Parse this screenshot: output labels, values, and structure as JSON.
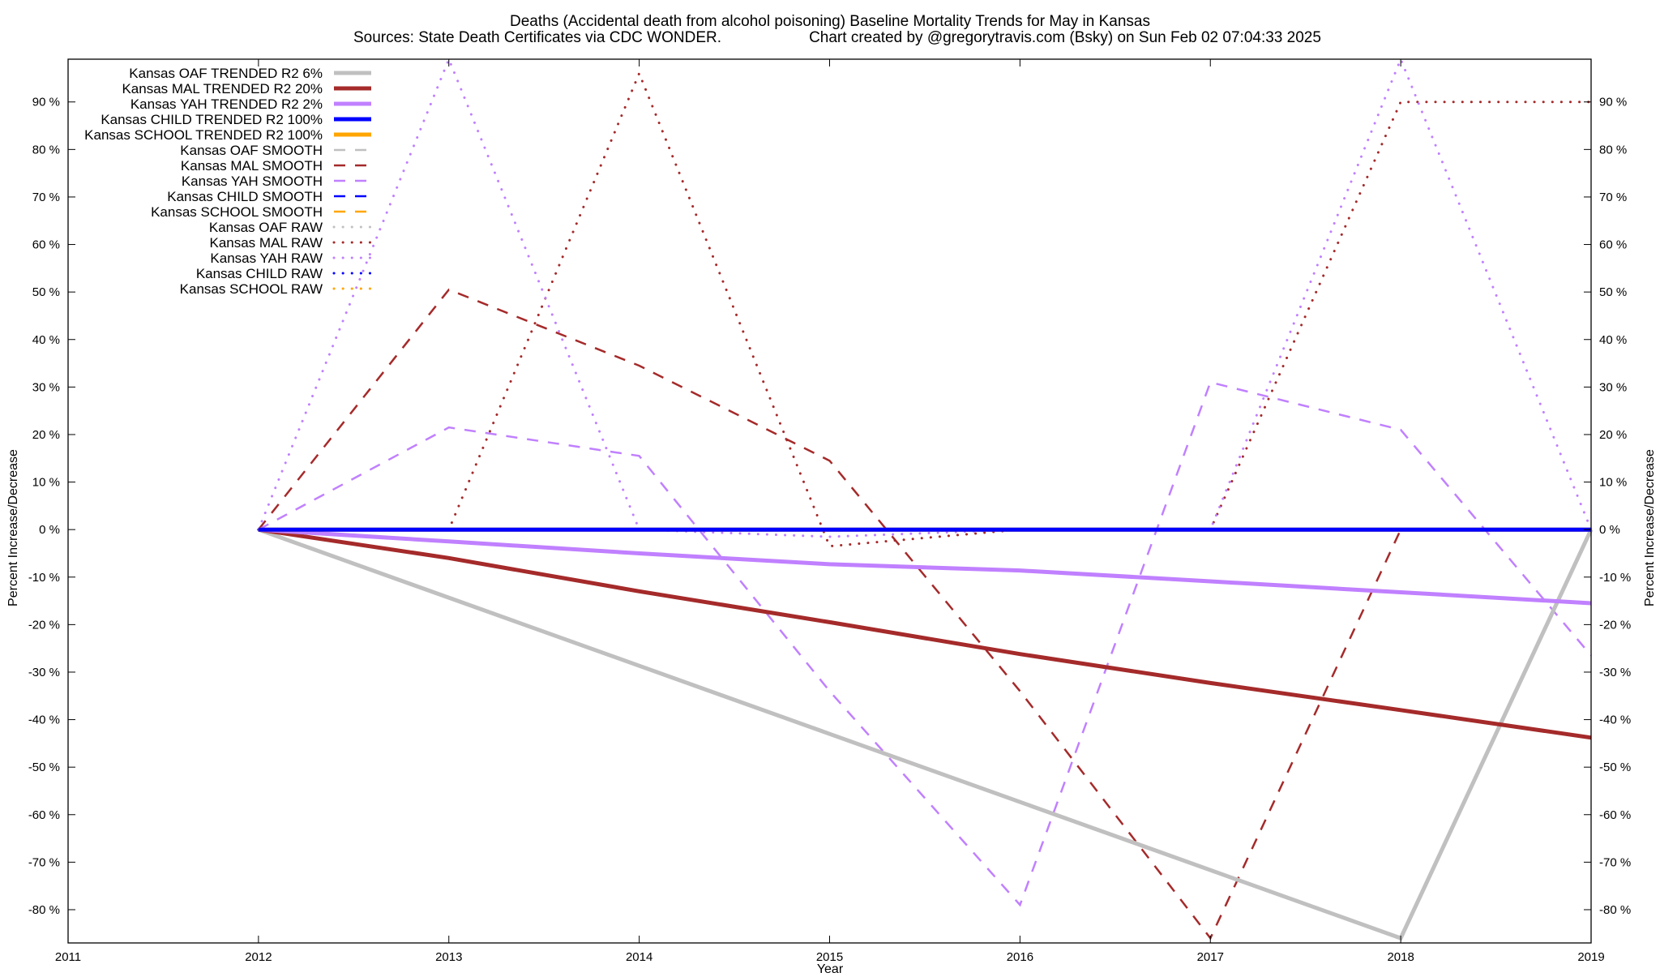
{
  "chart_data": {
    "type": "line",
    "title": "Deaths (Accidental death from alcohol poisoning)  Baseline Mortality Trends for May in Kansas",
    "subtitle_left": "Sources: State Death Certificates via CDC WONDER.",
    "subtitle_right": "Chart created by @gregorytravis.com (Bsky) on Sun Feb 02 07:04:33 2025",
    "xlabel": "Year",
    "ylabel": "Percent Increase/Decrease",
    "y2label": "Percent Increase/Decrease",
    "xlim": [
      2011,
      2019
    ],
    "ylim": [
      -87,
      99
    ],
    "x_ticks": [
      2011,
      2012,
      2013,
      2014,
      2015,
      2016,
      2017,
      2018,
      2019
    ],
    "y_ticks": [
      -80,
      -70,
      -60,
      -50,
      -40,
      -30,
      -20,
      -10,
      0,
      10,
      20,
      30,
      40,
      50,
      60,
      70,
      80,
      90
    ],
    "y_tick_suffix": " %",
    "grid": false,
    "legend_position": "top-left",
    "colors": {
      "oaf": "#c0c0c0",
      "mal": "#a52a2a",
      "yah": "#c080ff",
      "child": "#0000ff",
      "school": "#ffa500"
    },
    "series": [
      {
        "name": "Kansas OAF TRENDED R2   6%",
        "group": "oaf",
        "style": "trended",
        "x": [
          2012,
          2018,
          2019
        ],
        "y": [
          0,
          -86,
          0
        ]
      },
      {
        "name": "Kansas MAL TRENDED R2  20%",
        "group": "mal",
        "style": "trended",
        "x": [
          2012,
          2013,
          2014,
          2015,
          2016,
          2017,
          2018,
          2019
        ],
        "y": [
          0,
          -6,
          -13,
          -19.5,
          -26.2,
          -32.3,
          -38,
          -43.8
        ]
      },
      {
        "name": "Kansas YAH TRENDED R2   2%",
        "group": "yah",
        "style": "trended",
        "x": [
          2012,
          2013,
          2014,
          2015,
          2016,
          2017,
          2018,
          2019
        ],
        "y": [
          0,
          -2.5,
          -5,
          -7.3,
          -8.6,
          -10.9,
          -13.2,
          -15.5
        ]
      },
      {
        "name": "Kansas CHILD TRENDED R2 100%",
        "group": "child",
        "style": "trended",
        "x": [
          2012,
          2019
        ],
        "y": [
          0,
          0
        ]
      },
      {
        "name": "Kansas SCHOOL TRENDED R2 100%",
        "group": "school",
        "style": "trended",
        "x": [
          2012,
          2019
        ],
        "y": [
          0,
          0
        ]
      },
      {
        "name": "Kansas OAF SMOOTH",
        "group": "oaf",
        "style": "smooth",
        "x": [
          2012,
          2019
        ],
        "y": [
          0,
          0
        ]
      },
      {
        "name": "Kansas MAL SMOOTH",
        "group": "mal",
        "style": "smooth",
        "x": [
          2012,
          2013,
          2014,
          2015,
          2016,
          2017,
          2018,
          2019
        ],
        "y": [
          0,
          50.5,
          34.5,
          14.5,
          -34,
          -86,
          0,
          0
        ]
      },
      {
        "name": "Kansas YAH SMOOTH",
        "group": "yah",
        "style": "smooth",
        "x": [
          2012,
          2013,
          2014,
          2015,
          2016,
          2017,
          2018,
          2019
        ],
        "y": [
          0,
          21.5,
          15.5,
          -34,
          -79,
          31,
          21,
          -26.5
        ]
      },
      {
        "name": "Kansas CHILD SMOOTH",
        "group": "child",
        "style": "smooth",
        "x": [
          2012,
          2019
        ],
        "y": [
          0,
          0
        ]
      },
      {
        "name": "Kansas SCHOOL SMOOTH",
        "group": "school",
        "style": "smooth",
        "x": [
          2012,
          2019
        ],
        "y": [
          0,
          0
        ]
      },
      {
        "name": "Kansas OAF RAW",
        "group": "oaf",
        "style": "raw",
        "x": [
          2012,
          2019
        ],
        "y": [
          0,
          0
        ]
      },
      {
        "name": "Kansas MAL RAW",
        "group": "mal",
        "style": "raw",
        "x": [
          2012,
          2013,
          2014,
          2015,
          2016,
          2017,
          2018,
          2019
        ],
        "y": [
          0,
          0,
          96,
          -3.5,
          0,
          0,
          90,
          90
        ]
      },
      {
        "name": "Kansas YAH RAW",
        "group": "yah",
        "style": "raw",
        "x": [
          2012,
          2013,
          2014,
          2015,
          2016,
          2017,
          2018,
          2019
        ],
        "y": [
          0,
          99,
          0,
          -1.5,
          0,
          0,
          99,
          0
        ]
      },
      {
        "name": "Kansas CHILD RAW",
        "group": "child",
        "style": "raw",
        "x": [
          2012,
          2019
        ],
        "y": [
          0,
          0
        ]
      },
      {
        "name": "Kansas SCHOOL RAW",
        "group": "school",
        "style": "raw",
        "x": [
          2012,
          2019
        ],
        "y": [
          0,
          0
        ]
      }
    ]
  }
}
